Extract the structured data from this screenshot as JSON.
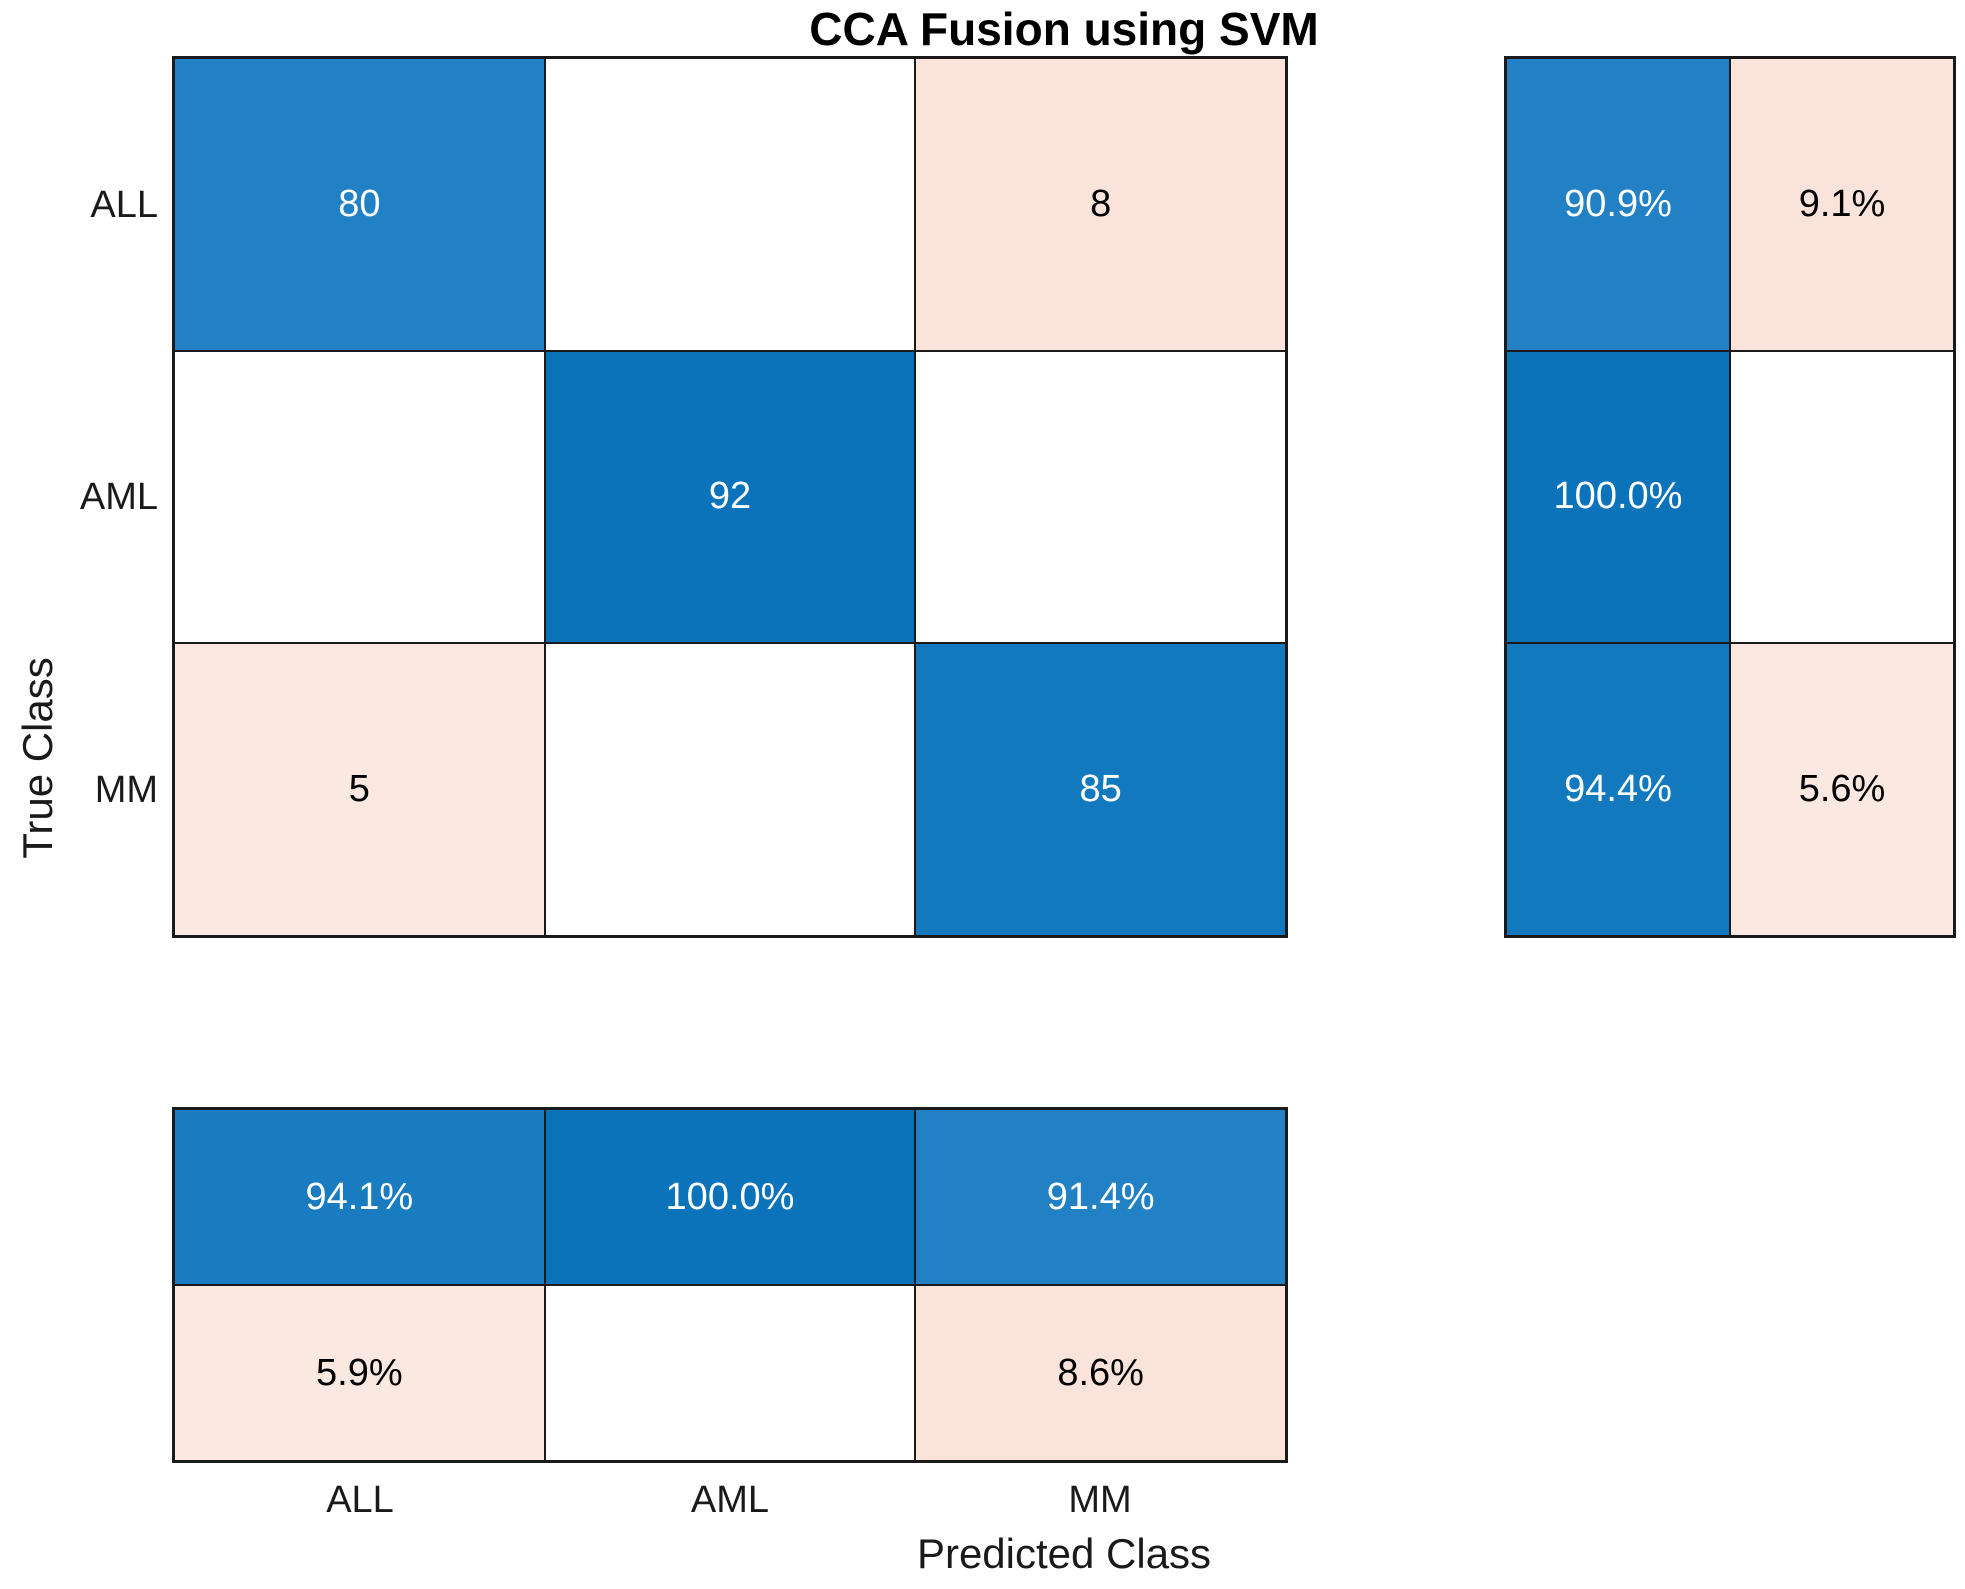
{
  "chart": {
    "title": "CCA Fusion using SVM",
    "xlabel": "Predicted Class",
    "ylabel": "True Class",
    "classes": [
      "ALL",
      "AML",
      "MM"
    ]
  },
  "colors": {
    "blue_dark": "#0B73B9",
    "blue_mid": "#1379BE",
    "blue_light": "#2181C4",
    "pink_strong": "#F9E3DA",
    "pink_light": "#FBE8E1",
    "grid_line": "#1A1A1A",
    "background": "#FFFFFF"
  },
  "cells": {
    "matrix": [
      [
        {
          "text": "80",
          "bg": "#2181C4",
          "fg": "#FFFFFF"
        },
        {
          "text": "",
          "bg": "#FFFFFF",
          "fg": "#000000"
        },
        {
          "text": "8",
          "bg": "#F9E3DA",
          "fg": "#000000"
        }
      ],
      [
        {
          "text": "",
          "bg": "#FFFFFF",
          "fg": "#000000"
        },
        {
          "text": "92",
          "bg": "#0B73B9",
          "fg": "#FFFFFF"
        },
        {
          "text": "",
          "bg": "#FFFFFF",
          "fg": "#000000"
        }
      ],
      [
        {
          "text": "5",
          "bg": "#FBE8E1",
          "fg": "#000000"
        },
        {
          "text": "",
          "bg": "#FFFFFF",
          "fg": "#000000"
        },
        {
          "text": "85",
          "bg": "#1379BE",
          "fg": "#FFFFFF"
        }
      ]
    ],
    "row_summary": [
      [
        {
          "text": "90.9%",
          "bg": "#2181C4",
          "fg": "#FFFFFF"
        },
        {
          "text": "9.1%",
          "bg": "#F9E3DA",
          "fg": "#000000"
        }
      ],
      [
        {
          "text": "100.0%",
          "bg": "#0B73B9",
          "fg": "#FFFFFF"
        },
        {
          "text": "",
          "bg": "#FFFFFF",
          "fg": "#000000"
        }
      ],
      [
        {
          "text": "94.4%",
          "bg": "#1379BE",
          "fg": "#FFFFFF"
        },
        {
          "text": "5.6%",
          "bg": "#FBE8E1",
          "fg": "#000000"
        }
      ]
    ],
    "col_summary": [
      [
        {
          "text": "94.1%",
          "bg": "#1A7CC0",
          "fg": "#FFFFFF"
        },
        {
          "text": "100.0%",
          "bg": "#0B73B9",
          "fg": "#FFFFFF"
        },
        {
          "text": "91.4%",
          "bg": "#2181C4",
          "fg": "#FFFFFF"
        }
      ],
      [
        {
          "text": "5.9%",
          "bg": "#FBE8E1",
          "fg": "#000000"
        },
        {
          "text": "",
          "bg": "#FFFFFF",
          "fg": "#000000"
        },
        {
          "text": "8.6%",
          "bg": "#F9E3DA",
          "fg": "#000000"
        }
      ]
    ]
  },
  "chart_data": {
    "type": "heatmap",
    "subtype": "confusion-matrix",
    "title": "CCA Fusion using SVM",
    "xlabel": "Predicted Class",
    "ylabel": "True Class",
    "classes": [
      "ALL",
      "AML",
      "MM"
    ],
    "matrix_counts": [
      [
        80,
        null,
        8
      ],
      [
        null,
        92,
        null
      ],
      [
        5,
        null,
        85
      ]
    ],
    "row_summary_percent": [
      [
        90.9,
        9.1
      ],
      [
        100.0,
        null
      ],
      [
        94.4,
        5.6
      ]
    ],
    "col_summary_percent": [
      [
        94.1,
        100.0,
        91.4
      ],
      [
        5.9,
        null,
        8.6
      ]
    ],
    "legend_position": "none",
    "grid": true
  }
}
